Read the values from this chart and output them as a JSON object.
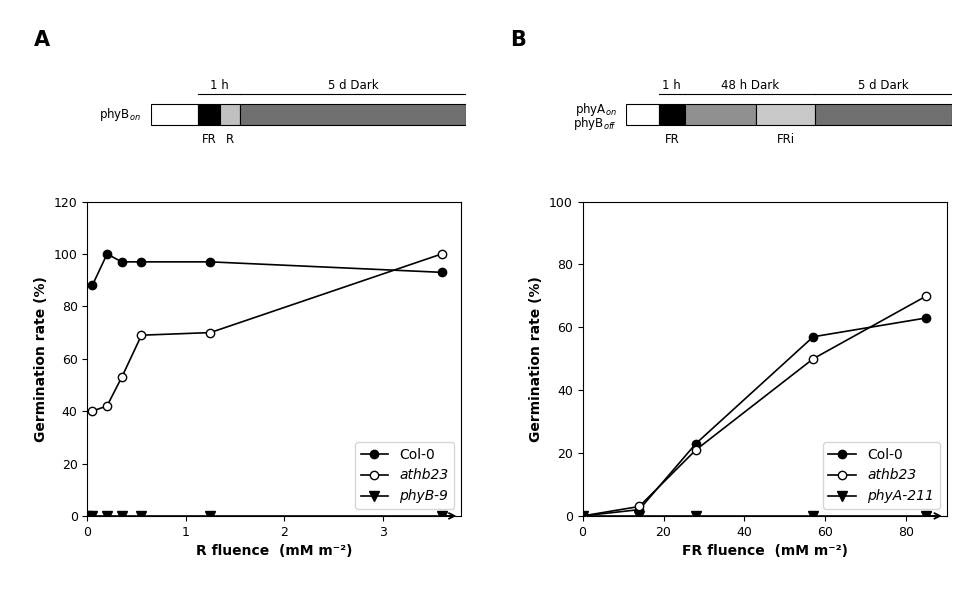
{
  "panel_A": {
    "col0_x": [
      0.05,
      0.2,
      0.35,
      0.55,
      1.25,
      3.6
    ],
    "col0_y": [
      88,
      100,
      97,
      97,
      97,
      93
    ],
    "athb23_x": [
      0.05,
      0.2,
      0.35,
      0.55,
      1.25,
      3.6
    ],
    "athb23_y": [
      40,
      42,
      53,
      69,
      70,
      100
    ],
    "phyB9_x": [
      0.0,
      0.05,
      0.2,
      0.35,
      0.55,
      1.25,
      3.6
    ],
    "phyB9_y": [
      0,
      0,
      0,
      0,
      0,
      0,
      0
    ],
    "xlabel": "R fluence  (mM m⁻²)",
    "ylabel": "Germination rate (%)",
    "ylim": [
      0,
      120
    ],
    "yticks": [
      0,
      20,
      40,
      60,
      80,
      100,
      120
    ],
    "xlim": [
      0,
      3.8
    ],
    "xticks": [
      0,
      1,
      2,
      3
    ],
    "phyB_on_label": "phyB$_{on}$",
    "bar_label_1h": "1 h",
    "bar_label_5d": "5 d Dark",
    "bar_FR_label": "FR",
    "bar_R_label": "R",
    "diagram_colors": {
      "white": "#ffffff",
      "black": "#000000",
      "light_gray": "#c0c0c0",
      "dark_gray": "#707070"
    }
  },
  "panel_B": {
    "col0_x": [
      0,
      14,
      28,
      57,
      85
    ],
    "col0_y": [
      0,
      2,
      23,
      57,
      63
    ],
    "athb23_x": [
      0,
      14,
      28,
      57,
      85
    ],
    "athb23_y": [
      0,
      3,
      21,
      50,
      70
    ],
    "phyA211_x": [
      0,
      14,
      28,
      57,
      85
    ],
    "phyA211_y": [
      0,
      0,
      0,
      0,
      0
    ],
    "xlabel": "FR fluence  (mM m⁻²)",
    "ylabel": "Germination rate (%)",
    "ylim": [
      0,
      100
    ],
    "yticks": [
      0,
      20,
      40,
      60,
      80,
      100
    ],
    "xlim": [
      0,
      90
    ],
    "xticks": [
      0,
      20,
      40,
      60,
      80
    ],
    "phyA_on_label": "phyA$_{on}$",
    "phyB_off_label": "phyB$_{off}$",
    "bar_label_1h": "1 h",
    "bar_label_48h": "48 h Dark",
    "bar_label_5d": "5 d Dark",
    "bar_FR_label": "FR",
    "bar_FRi_label": "FRi",
    "diagram_colors": {
      "white": "#ffffff",
      "black": "#000000",
      "medium_gray": "#909090",
      "light_gray": "#c8c8c8",
      "dark_gray": "#707070"
    }
  },
  "bg_color": "#ffffff"
}
